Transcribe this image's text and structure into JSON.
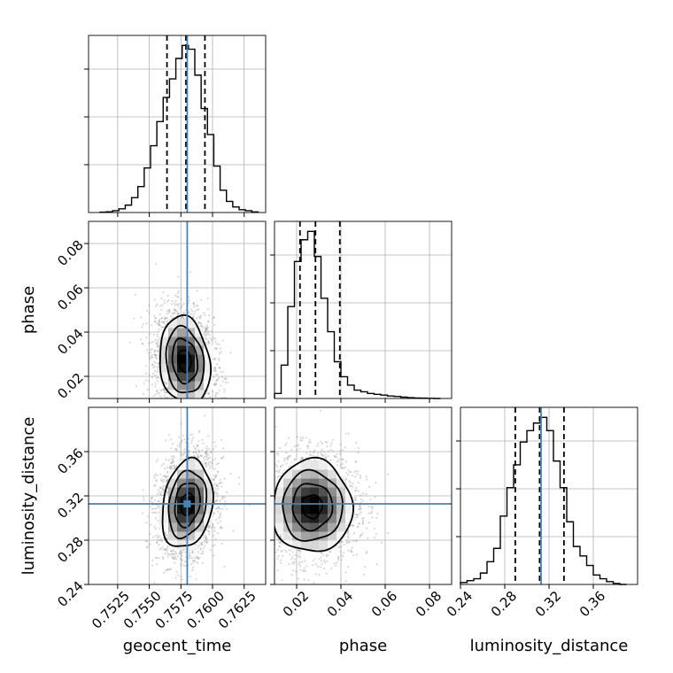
{
  "chart_data": {
    "type": "corner",
    "parameters": [
      "geocent_time",
      "phase",
      "luminosity_distance"
    ],
    "axis_labels": {
      "geocent_time": "geocent_time",
      "phase": "phase",
      "luminosity_distance": "luminosity_distance"
    },
    "ranges": {
      "geocent_time": [
        0.7502,
        0.7642
      ],
      "phase": [
        0.01,
        0.09
      ],
      "luminosity_distance": [
        0.24,
        0.4
      ]
    },
    "ticks": {
      "geocent_time": [
        "0.7525",
        "0.7550",
        "0.7575",
        "0.7600",
        "0.7625"
      ],
      "phase": [
        "0.02",
        "0.04",
        "0.06",
        "0.08"
      ],
      "luminosity_distance": [
        "0.24",
        "0.28",
        "0.32",
        "0.36"
      ]
    },
    "truths": {
      "geocent_time": 0.758,
      "phase": null,
      "luminosity_distance": 0.3128
    },
    "quantiles": {
      "geocent_time": [
        0.7564,
        0.7579,
        0.7594
      ],
      "phase": [
        0.0215,
        0.0285,
        0.0395
      ],
      "luminosity_distance": [
        0.2895,
        0.3115,
        0.3335
      ]
    },
    "marginals": {
      "geocent_time": {
        "edges": [
          0.7511,
          0.7516,
          0.7521,
          0.7526,
          0.7531,
          0.7536,
          0.7541,
          0.7546,
          0.7551,
          0.7556,
          0.7561,
          0.7566,
          0.7571,
          0.7576,
          0.7581,
          0.7586,
          0.7591,
          0.7596,
          0.7601,
          0.7606,
          0.7611,
          0.7616,
          0.7621,
          0.7626,
          0.7631,
          0.7636
        ],
        "counts": [
          0.2,
          0.4,
          1,
          2,
          4,
          8,
          14,
          24,
          36,
          49,
          62,
          72,
          83,
          90,
          88,
          74,
          56,
          42,
          25,
          12,
          6,
          3,
          1.5,
          1,
          0.3
        ]
      },
      "phase": {
        "edges": [
          0.01,
          0.013,
          0.016,
          0.019,
          0.022,
          0.025,
          0.028,
          0.031,
          0.034,
          0.037,
          0.04,
          0.043,
          0.046,
          0.049,
          0.052,
          0.055,
          0.058,
          0.061,
          0.064,
          0.067,
          0.07,
          0.073,
          0.076,
          0.079,
          0.082,
          0.085
        ],
        "counts": [
          3,
          20,
          55,
          82,
          95,
          100,
          85,
          60,
          40,
          22,
          13,
          8,
          5,
          4,
          3,
          2.5,
          2,
          1.5,
          1.2,
          0.8,
          0.5,
          0.3,
          0.2,
          0.1,
          0
        ]
      },
      "luminosity_distance": {
        "edges": [
          0.24,
          0.246,
          0.252,
          0.258,
          0.264,
          0.27,
          0.276,
          0.282,
          0.288,
          0.294,
          0.3,
          0.306,
          0.312,
          0.318,
          0.324,
          0.33,
          0.336,
          0.342,
          0.348,
          0.354,
          0.36,
          0.366,
          0.372,
          0.378,
          0.384,
          0.39
        ],
        "counts": [
          1,
          2,
          3,
          6,
          12,
          19,
          36,
          51,
          63,
          75,
          81,
          85,
          88,
          81,
          65,
          51,
          33,
          20,
          15,
          10,
          5,
          3,
          1.5,
          0.5,
          0
        ]
      }
    },
    "joint": [
      {
        "x": "geocent_time",
        "y": "phase",
        "center": [
          0.7578,
          0.027
        ],
        "sigma": [
          0.001,
          0.01
        ],
        "rho": -0.15,
        "contour_levels": [
          0.118,
          0.393,
          0.675,
          0.864
        ]
      },
      {
        "x": "geocent_time",
        "y": "luminosity_distance",
        "center": [
          0.758,
          0.3125
        ],
        "sigma": [
          0.001,
          0.02
        ],
        "rho": 0.2,
        "contour_levels": [
          0.118,
          0.393,
          0.675,
          0.864
        ]
      },
      {
        "x": "phase",
        "y": "luminosity_distance",
        "center": [
          0.027,
          0.3105
        ],
        "sigma": [
          0.009,
          0.021
        ],
        "rho": 0.0,
        "contour_levels": [
          0.118,
          0.393,
          0.675,
          0.864
        ]
      }
    ],
    "grid": true,
    "legend": "none"
  }
}
